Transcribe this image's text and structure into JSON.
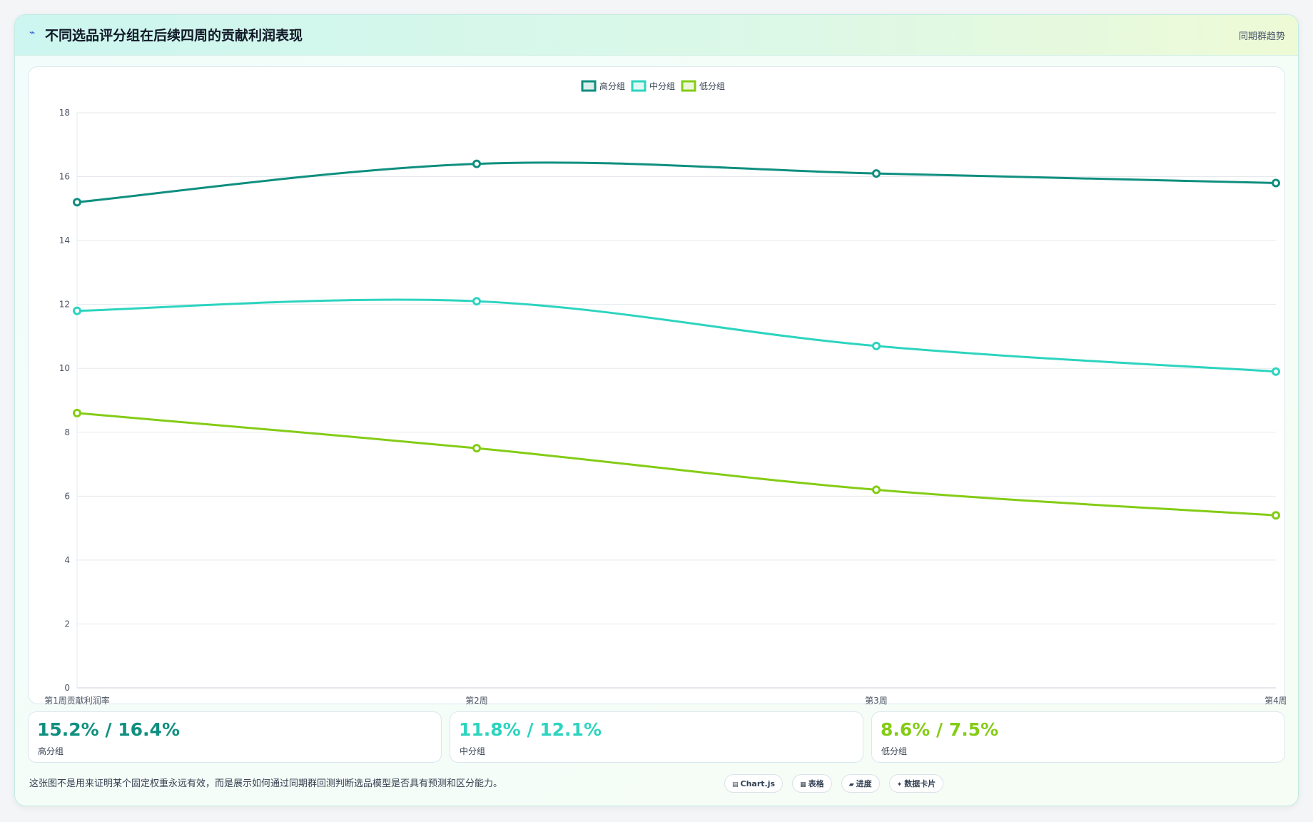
{
  "header": {
    "title": "不同选品评分组在后续四周的贡献利润表现",
    "tag": "同期群趋势",
    "icon": "line-chart-icon"
  },
  "chart_data": {
    "type": "line",
    "categories": [
      "第1周贡献利润率",
      "第2周",
      "第3周",
      "第4周"
    ],
    "series": [
      {
        "name": "高分组",
        "values": [
          15.2,
          16.4,
          16.1,
          15.8
        ],
        "color": "#0f8f7f"
      },
      {
        "name": "中分组",
        "values": [
          11.8,
          12.1,
          10.7,
          9.9
        ],
        "color": "#2dd4bf"
      },
      {
        "name": "低分组",
        "values": [
          8.6,
          7.5,
          6.2,
          5.4
        ],
        "color": "#84cc16"
      }
    ],
    "ylim": [
      0,
      18
    ],
    "yticks": [
      0,
      2,
      4,
      6,
      8,
      10,
      12,
      14,
      16,
      18
    ],
    "grid": true,
    "legend": "top-center"
  },
  "stats": [
    {
      "value": "15.2% / 16.4%",
      "label": "高分组",
      "color": "#0f8f7f"
    },
    {
      "value": "11.8% / 12.1%",
      "label": "中分组",
      "color": "#2dd4bf"
    },
    {
      "value": "8.6% / 7.5%",
      "label": "低分组",
      "color": "#84cc16"
    }
  ],
  "footnote": "这张图不是用来证明某个固定权重永远有效，而是展示如何通过同期群回测判断选品模型是否具有预测和区分能力。",
  "badges": [
    {
      "icon": "chart-icon",
      "label": "Chart.js"
    },
    {
      "icon": "table-icon",
      "label": "表格"
    },
    {
      "icon": "progress-icon",
      "label": "进度"
    },
    {
      "icon": "card-icon",
      "label": "数据卡片"
    }
  ]
}
